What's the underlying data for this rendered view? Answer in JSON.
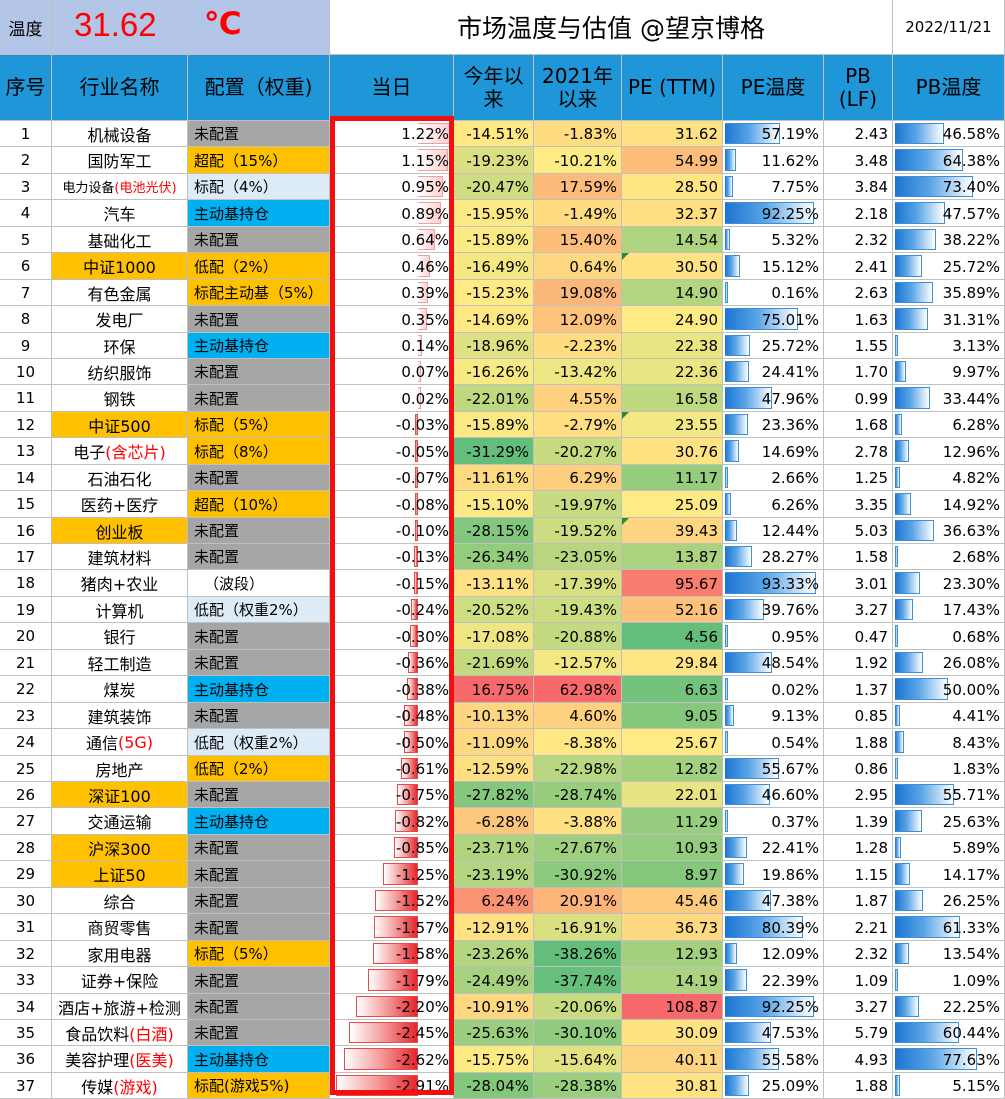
{
  "header": {
    "temp_label": "温度",
    "temp_value": "31.62",
    "temp_unit": "℃",
    "title": "市场温度与估值 @望京博格",
    "date": "2022/11/21"
  },
  "columns": {
    "no": "序号",
    "industry": "行业名称",
    "allocation": "配置（权重)",
    "today": "当日",
    "ytd": "今年以来",
    "since2021": "2021年以来",
    "pe": "PE (TTM)",
    "pe_temp": "PE温度",
    "pb": "PB (LF)",
    "pb_temp": "PB温度"
  },
  "colors": {
    "header_blue": "#1e96d8",
    "top_gray_blue": "#b4c6e7",
    "temp_red": "#ff0000",
    "alloc_gray": "#a6a6a6",
    "alloc_orange": "#ffc000",
    "alloc_lightblue": "#ddebf7",
    "alloc_cyan": "#00b0f0",
    "highlight_box": "#f20f0f"
  },
  "rows": [
    {
      "no": "1",
      "name": "机械设备",
      "name_style": "plain",
      "alloc": "未配置",
      "alloc_style": "gray",
      "today": "1.22%",
      "today_num": 1.22,
      "ytd": "-14.51%",
      "ytd_num": -14.51,
      "since": "-1.83%",
      "since_num": -1.83,
      "pe": "31.62",
      "pe_num": 31.62,
      "pet": "57.19%",
      "pet_num": 57.19,
      "pb": "2.43",
      "pbt": "46.58%",
      "pbt_num": 46.58
    },
    {
      "no": "2",
      "name": "国防军工",
      "name_style": "plain",
      "alloc": "超配（15%）",
      "alloc_style": "orange",
      "today": "1.15%",
      "today_num": 1.15,
      "ytd": "-19.23%",
      "ytd_num": -19.23,
      "since": "-10.21%",
      "since_num": -10.21,
      "pe": "54.99",
      "pe_num": 54.99,
      "pet": "11.62%",
      "pet_num": 11.62,
      "pb": "3.48",
      "pbt": "64.38%",
      "pbt_num": 64.38
    },
    {
      "no": "3",
      "name": "电力设备",
      "name_red": "(电池光伏)",
      "name_style": "small",
      "alloc": "标配（4%）",
      "alloc_style": "lightblue",
      "today": "0.95%",
      "today_num": 0.95,
      "ytd": "-20.47%",
      "ytd_num": -20.47,
      "since": "17.59%",
      "since_num": 17.59,
      "pe": "28.50",
      "pe_num": 28.5,
      "pet": "7.75%",
      "pet_num": 7.75,
      "pb": "3.84",
      "pbt": "73.40%",
      "pbt_num": 73.4
    },
    {
      "no": "4",
      "name": "汽车",
      "name_style": "plain",
      "alloc": "主动基持仓",
      "alloc_style": "cyan",
      "today": "0.89%",
      "today_num": 0.89,
      "ytd": "-15.95%",
      "ytd_num": -15.95,
      "since": "-1.49%",
      "since_num": -1.49,
      "pe": "32.37",
      "pe_num": 32.37,
      "pet": "92.25%",
      "pet_num": 92.25,
      "pb": "2.18",
      "pbt": "47.57%",
      "pbt_num": 47.57
    },
    {
      "no": "5",
      "name": "基础化工",
      "name_style": "plain",
      "alloc": "未配置",
      "alloc_style": "gray",
      "today": "0.64%",
      "today_num": 0.64,
      "ytd": "-15.89%",
      "ytd_num": -15.89,
      "since": "15.40%",
      "since_num": 15.4,
      "pe": "14.54",
      "pe_num": 14.54,
      "pet": "5.32%",
      "pet_num": 5.32,
      "pb": "2.32",
      "pbt": "38.22%",
      "pbt_num": 38.22
    },
    {
      "no": "6",
      "name": "中证1000",
      "name_style": "orange",
      "alloc": "低配（2%）",
      "alloc_style": "orange",
      "today": "0.46%",
      "today_num": 0.46,
      "ytd": "-16.49%",
      "ytd_num": -16.49,
      "since": "0.64%",
      "since_num": 0.64,
      "pe": "30.50",
      "pe_num": 30.5,
      "pe_flag": true,
      "pet": "15.12%",
      "pet_num": 15.12,
      "pb": "2.41",
      "pbt": "25.72%",
      "pbt_num": 25.72
    },
    {
      "no": "7",
      "name": "有色金属",
      "name_style": "plain",
      "alloc": "标配主动基（5%）",
      "alloc_style": "orange",
      "today": "0.39%",
      "today_num": 0.39,
      "ytd": "-15.23%",
      "ytd_num": -15.23,
      "since": "19.08%",
      "since_num": 19.08,
      "pe": "14.90",
      "pe_num": 14.9,
      "pet": "0.16%",
      "pet_num": 0.16,
      "pb": "2.63",
      "pbt": "35.89%",
      "pbt_num": 35.89
    },
    {
      "no": "8",
      "name": "发电厂",
      "name_style": "plain",
      "alloc": "未配置",
      "alloc_style": "gray",
      "today": "0.35%",
      "today_num": 0.35,
      "ytd": "-14.69%",
      "ytd_num": -14.69,
      "since": "12.09%",
      "since_num": 12.09,
      "pe": "24.90",
      "pe_num": 24.9,
      "pet": "75.01%",
      "pet_num": 75.01,
      "pb": "1.63",
      "pbt": "31.31%",
      "pbt_num": 31.31
    },
    {
      "no": "9",
      "name": "环保",
      "name_style": "plain",
      "alloc": "主动基持仓",
      "alloc_style": "cyan",
      "today": "0.14%",
      "today_num": 0.14,
      "ytd": "-18.96%",
      "ytd_num": -18.96,
      "since": "-2.23%",
      "since_num": -2.23,
      "pe": "22.38",
      "pe_num": 22.38,
      "pet": "25.72%",
      "pet_num": 25.72,
      "pb": "1.55",
      "pbt": "3.13%",
      "pbt_num": 3.13
    },
    {
      "no": "10",
      "name": "纺织服饰",
      "name_style": "plain",
      "alloc": "未配置",
      "alloc_style": "gray",
      "today": "0.07%",
      "today_num": 0.07,
      "ytd": "-16.26%",
      "ytd_num": -16.26,
      "since": "-13.42%",
      "since_num": -13.42,
      "pe": "22.36",
      "pe_num": 22.36,
      "pet": "24.41%",
      "pet_num": 24.41,
      "pb": "1.70",
      "pbt": "9.97%",
      "pbt_num": 9.97
    },
    {
      "no": "11",
      "name": "钢铁",
      "name_style": "plain",
      "alloc": "未配置",
      "alloc_style": "gray",
      "today": "0.02%",
      "today_num": 0.02,
      "ytd": "-22.01%",
      "ytd_num": -22.01,
      "since": "4.55%",
      "since_num": 4.55,
      "pe": "16.58",
      "pe_num": 16.58,
      "pet": "47.96%",
      "pet_num": 47.96,
      "pb": "0.99",
      "pbt": "33.44%",
      "pbt_num": 33.44
    },
    {
      "no": "12",
      "name": "中证500",
      "name_style": "orange",
      "alloc": "标配（5%）",
      "alloc_style": "orange",
      "today": "-0.03%",
      "today_num": -0.03,
      "ytd": "-15.89%",
      "ytd_num": -15.89,
      "since": "-2.79%",
      "since_num": -2.79,
      "pe": "23.55",
      "pe_num": 23.55,
      "pe_flag": true,
      "pet": "23.36%",
      "pet_num": 23.36,
      "pb": "1.68",
      "pbt": "6.28%",
      "pbt_num": 6.28
    },
    {
      "no": "13",
      "name": "电子",
      "name_red": "(含芯片)",
      "name_style": "plain",
      "alloc": "标配（8%）",
      "alloc_style": "orange",
      "today": "-0.05%",
      "today_num": -0.05,
      "ytd": "-31.29%",
      "ytd_num": -31.29,
      "since": "-20.27%",
      "since_num": -20.27,
      "pe": "30.76",
      "pe_num": 30.76,
      "pet": "14.69%",
      "pet_num": 14.69,
      "pb": "2.78",
      "pbt": "12.96%",
      "pbt_num": 12.96
    },
    {
      "no": "14",
      "name": "石油石化",
      "name_style": "plain",
      "alloc": "未配置",
      "alloc_style": "gray",
      "today": "-0.07%",
      "today_num": -0.07,
      "ytd": "-11.61%",
      "ytd_num": -11.61,
      "since": "6.29%",
      "since_num": 6.29,
      "pe": "11.17",
      "pe_num": 11.17,
      "pet": "2.66%",
      "pet_num": 2.66,
      "pb": "1.25",
      "pbt": "4.82%",
      "pbt_num": 4.82
    },
    {
      "no": "15",
      "name": "医药+医疗",
      "name_style": "plain",
      "alloc": "超配（10%）",
      "alloc_style": "orange",
      "today": "-0.08%",
      "today_num": -0.08,
      "ytd": "-15.10%",
      "ytd_num": -15.1,
      "since": "-19.97%",
      "since_num": -19.97,
      "pe": "25.09",
      "pe_num": 25.09,
      "pet": "6.26%",
      "pet_num": 6.26,
      "pb": "3.35",
      "pbt": "14.92%",
      "pbt_num": 14.92
    },
    {
      "no": "16",
      "name": "创业板",
      "name_style": "orange",
      "alloc": "未配置",
      "alloc_style": "gray",
      "today": "-0.10%",
      "today_num": -0.1,
      "ytd": "-28.15%",
      "ytd_num": -28.15,
      "since": "-19.52%",
      "since_num": -19.52,
      "pe": "39.43",
      "pe_num": 39.43,
      "pe_flag": true,
      "pet": "12.44%",
      "pet_num": 12.44,
      "pb": "5.03",
      "pbt": "36.63%",
      "pbt_num": 36.63
    },
    {
      "no": "17",
      "name": "建筑材料",
      "name_style": "plain",
      "alloc": "未配置",
      "alloc_style": "gray",
      "today": "-0.13%",
      "today_num": -0.13,
      "ytd": "-26.34%",
      "ytd_num": -26.34,
      "since": "-23.05%",
      "since_num": -23.05,
      "pe": "13.87",
      "pe_num": 13.87,
      "pet": "28.27%",
      "pet_num": 28.27,
      "pb": "1.58",
      "pbt": "2.68%",
      "pbt_num": 2.68
    },
    {
      "no": "18",
      "name": "猪肉+农业",
      "name_style": "plain",
      "alloc": "（波段）",
      "alloc_style": "white",
      "today": "-0.15%",
      "today_num": -0.15,
      "ytd": "-13.11%",
      "ytd_num": -13.11,
      "since": "-17.39%",
      "since_num": -17.39,
      "pe": "95.67",
      "pe_num": 95.67,
      "pet": "93.33%",
      "pet_num": 93.33,
      "pb": "3.01",
      "pbt": "23.30%",
      "pbt_num": 23.3
    },
    {
      "no": "19",
      "name": "计算机",
      "name_style": "plain",
      "alloc": "低配（权重2%）",
      "alloc_style": "lightblue",
      "today": "-0.24%",
      "today_num": -0.24,
      "ytd": "-20.52%",
      "ytd_num": -20.52,
      "since": "-19.43%",
      "since_num": -19.43,
      "pe": "52.16",
      "pe_num": 52.16,
      "pet": "39.76%",
      "pet_num": 39.76,
      "pb": "3.27",
      "pbt": "17.43%",
      "pbt_num": 17.43
    },
    {
      "no": "20",
      "name": "银行",
      "name_style": "plain",
      "alloc": "未配置",
      "alloc_style": "gray",
      "today": "-0.30%",
      "today_num": -0.3,
      "ytd": "-17.08%",
      "ytd_num": -17.08,
      "since": "-20.88%",
      "since_num": -20.88,
      "pe": "4.56",
      "pe_num": 4.56,
      "pet": "0.95%",
      "pet_num": 0.95,
      "pb": "0.47",
      "pbt": "0.68%",
      "pbt_num": 0.68
    },
    {
      "no": "21",
      "name": "轻工制造",
      "name_style": "plain",
      "alloc": "未配置",
      "alloc_style": "gray",
      "today": "-0.36%",
      "today_num": -0.36,
      "ytd": "-21.69%",
      "ytd_num": -21.69,
      "since": "-12.57%",
      "since_num": -12.57,
      "pe": "29.84",
      "pe_num": 29.84,
      "pet": "48.54%",
      "pet_num": 48.54,
      "pb": "1.92",
      "pbt": "26.08%",
      "pbt_num": 26.08
    },
    {
      "no": "22",
      "name": "煤炭",
      "name_style": "plain",
      "alloc": "主动基持仓",
      "alloc_style": "cyan",
      "today": "-0.38%",
      "today_num": -0.38,
      "ytd": "16.75%",
      "ytd_num": 16.75,
      "since": "62.98%",
      "since_num": 62.98,
      "pe": "6.63",
      "pe_num": 6.63,
      "pet": "0.02%",
      "pet_num": 0.02,
      "pb": "1.37",
      "pbt": "50.00%",
      "pbt_num": 50.0
    },
    {
      "no": "23",
      "name": "建筑装饰",
      "name_style": "plain",
      "alloc": "未配置",
      "alloc_style": "gray",
      "today": "-0.48%",
      "today_num": -0.48,
      "ytd": "-10.13%",
      "ytd_num": -10.13,
      "since": "4.60%",
      "since_num": 4.6,
      "pe": "9.05",
      "pe_num": 9.05,
      "pet": "9.13%",
      "pet_num": 9.13,
      "pb": "0.85",
      "pbt": "4.41%",
      "pbt_num": 4.41
    },
    {
      "no": "24",
      "name": "通信",
      "name_red": "(5G)",
      "name_style": "plain",
      "alloc": "低配（权重2%）",
      "alloc_style": "lightblue",
      "today": "-0.50%",
      "today_num": -0.5,
      "ytd": "-11.09%",
      "ytd_num": -11.09,
      "since": "-8.38%",
      "since_num": -8.38,
      "pe": "25.67",
      "pe_num": 25.67,
      "pet": "0.54%",
      "pet_num": 0.54,
      "pb": "1.88",
      "pbt": "8.43%",
      "pbt_num": 8.43
    },
    {
      "no": "25",
      "name": "房地产",
      "name_style": "plain",
      "alloc": "低配（2%）",
      "alloc_style": "orange",
      "today": "-0.61%",
      "today_num": -0.61,
      "ytd": "-12.59%",
      "ytd_num": -12.59,
      "since": "-22.98%",
      "since_num": -22.98,
      "pe": "12.82",
      "pe_num": 12.82,
      "pet": "55.67%",
      "pet_num": 55.67,
      "pb": "0.86",
      "pbt": "1.83%",
      "pbt_num": 1.83
    },
    {
      "no": "26",
      "name": "深证100",
      "name_style": "orange",
      "alloc": "未配置",
      "alloc_style": "gray",
      "today": "-0.75%",
      "today_num": -0.75,
      "ytd": "-27.82%",
      "ytd_num": -27.82,
      "since": "-28.74%",
      "since_num": -28.74,
      "pe": "22.01",
      "pe_num": 22.01,
      "pet": "46.60%",
      "pet_num": 46.6,
      "pb": "2.95",
      "pbt": "55.71%",
      "pbt_num": 55.71
    },
    {
      "no": "27",
      "name": "交通运输",
      "name_style": "plain",
      "alloc": "主动基持仓",
      "alloc_style": "cyan",
      "today": "-0.82%",
      "today_num": -0.82,
      "ytd": "-6.28%",
      "ytd_num": -6.28,
      "since": "-3.88%",
      "since_num": -3.88,
      "pe": "11.29",
      "pe_num": 11.29,
      "pet": "0.37%",
      "pet_num": 0.37,
      "pb": "1.39",
      "pbt": "25.63%",
      "pbt_num": 25.63
    },
    {
      "no": "28",
      "name": "沪深300",
      "name_style": "orange",
      "alloc": "未配置",
      "alloc_style": "gray",
      "today": "-0.85%",
      "today_num": -0.85,
      "ytd": "-23.71%",
      "ytd_num": -23.71,
      "since": "-27.67%",
      "since_num": -27.67,
      "pe": "10.93",
      "pe_num": 10.93,
      "pet": "22.41%",
      "pet_num": 22.41,
      "pb": "1.28",
      "pbt": "5.89%",
      "pbt_num": 5.89
    },
    {
      "no": "29",
      "name": "上证50",
      "name_style": "orange",
      "alloc": "未配置",
      "alloc_style": "gray",
      "today": "-1.25%",
      "today_num": -1.25,
      "ytd": "-23.19%",
      "ytd_num": -23.19,
      "since": "-30.92%",
      "since_num": -30.92,
      "pe": "8.97",
      "pe_num": 8.97,
      "pet": "19.86%",
      "pet_num": 19.86,
      "pb": "1.15",
      "pbt": "14.17%",
      "pbt_num": 14.17
    },
    {
      "no": "30",
      "name": "综合",
      "name_style": "plain",
      "alloc": "未配置",
      "alloc_style": "gray",
      "today": "-1.52%",
      "today_num": -1.52,
      "ytd": "6.24%",
      "ytd_num": 6.24,
      "since": "20.91%",
      "since_num": 20.91,
      "pe": "45.46",
      "pe_num": 45.46,
      "pet": "47.38%",
      "pet_num": 47.38,
      "pb": "1.87",
      "pbt": "26.25%",
      "pbt_num": 26.25
    },
    {
      "no": "31",
      "name": "商贸零售",
      "name_style": "plain",
      "alloc": "未配置",
      "alloc_style": "gray",
      "today": "-1.57%",
      "today_num": -1.57,
      "ytd": "-12.91%",
      "ytd_num": -12.91,
      "since": "-16.91%",
      "since_num": -16.91,
      "pe": "36.73",
      "pe_num": 36.73,
      "pet": "80.39%",
      "pet_num": 80.39,
      "pb": "2.21",
      "pbt": "61.33%",
      "pbt_num": 61.33
    },
    {
      "no": "32",
      "name": "家用电器",
      "name_style": "plain",
      "alloc": "标配（5%）",
      "alloc_style": "orange",
      "today": "-1.58%",
      "today_num": -1.58,
      "ytd": "-23.26%",
      "ytd_num": -23.26,
      "since": "-38.26%",
      "since_num": -38.26,
      "pe": "12.93",
      "pe_num": 12.93,
      "pet": "12.09%",
      "pet_num": 12.09,
      "pb": "2.32",
      "pbt": "13.54%",
      "pbt_num": 13.54
    },
    {
      "no": "33",
      "name": "证券+保险",
      "name_style": "plain",
      "alloc": "未配置",
      "alloc_style": "gray",
      "today": "-1.79%",
      "today_num": -1.79,
      "ytd": "-24.49%",
      "ytd_num": -24.49,
      "since": "-37.74%",
      "since_num": -37.74,
      "pe": "14.19",
      "pe_num": 14.19,
      "pet": "22.39%",
      "pet_num": 22.39,
      "pb": "1.09",
      "pbt": "1.09%",
      "pbt_num": 1.09
    },
    {
      "no": "34",
      "name": "酒店+旅游+检测",
      "name_style": "plain",
      "alloc": "未配置",
      "alloc_style": "gray",
      "today": "-2.20%",
      "today_num": -2.2,
      "ytd": "-10.91%",
      "ytd_num": -10.91,
      "since": "-20.06%",
      "since_num": -20.06,
      "pe": "108.87",
      "pe_num": 108.87,
      "pet": "92.25%",
      "pet_num": 92.25,
      "pb": "3.27",
      "pbt": "22.25%",
      "pbt_num": 22.25
    },
    {
      "no": "35",
      "name": "食品饮料",
      "name_red": "(白酒)",
      "name_style": "plain",
      "alloc": "未配置",
      "alloc_style": "gray",
      "today": "-2.45%",
      "today_num": -2.45,
      "ytd": "-25.63%",
      "ytd_num": -25.63,
      "since": "-30.10%",
      "since_num": -30.1,
      "pe": "30.09",
      "pe_num": 30.09,
      "pet": "47.53%",
      "pet_num": 47.53,
      "pb": "5.79",
      "pbt": "60.44%",
      "pbt_num": 60.44
    },
    {
      "no": "36",
      "name": "美容护理",
      "name_red": "(医美)",
      "name_style": "plain",
      "alloc": "主动基持仓",
      "alloc_style": "cyan",
      "today": "-2.62%",
      "today_num": -2.62,
      "ytd": "-15.75%",
      "ytd_num": -15.75,
      "since": "-15.64%",
      "since_num": -15.64,
      "pe": "40.11",
      "pe_num": 40.11,
      "pet": "55.58%",
      "pet_num": 55.58,
      "pb": "4.93",
      "pbt": "77.63%",
      "pbt_num": 77.63
    },
    {
      "no": "37",
      "name": "传媒",
      "name_red": "(游戏)",
      "name_style": "plain",
      "alloc": "标配(游戏5%)",
      "alloc_style": "orange",
      "today": "-2.91%",
      "today_num": -2.91,
      "ytd": "-28.04%",
      "ytd_num": -28.04,
      "since": "-28.38%",
      "since_num": -28.38,
      "pe": "30.81",
      "pe_num": 30.81,
      "pet": "25.09%",
      "pet_num": 25.09,
      "pb": "1.88",
      "pbt": "5.15%",
      "pbt_num": 5.15
    }
  ]
}
